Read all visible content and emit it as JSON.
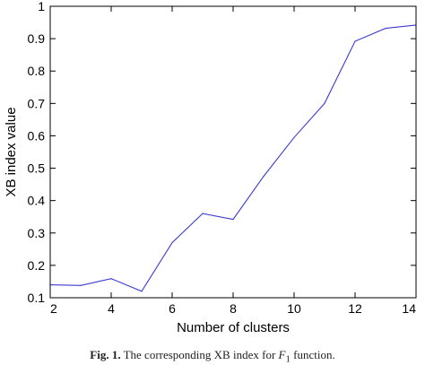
{
  "chart_data": {
    "type": "line",
    "title": "",
    "xlabel": "Number of clusters",
    "ylabel": "XB index value",
    "xlim": [
      2,
      14
    ],
    "ylim": [
      0.1,
      1
    ],
    "xticks": [
      2,
      4,
      6,
      8,
      10,
      12,
      14
    ],
    "yticks": [
      0.1,
      0.2,
      0.3,
      0.4,
      0.5,
      0.6,
      0.7,
      0.8,
      0.9,
      1
    ],
    "ytick_labels": [
      "0.1",
      "0.2",
      "0.3",
      "0.4",
      "0.5",
      "0.6",
      "0.7",
      "0.8",
      "0.9",
      "1"
    ],
    "grid": false,
    "legend": "none",
    "series": [
      {
        "color": "#3b3bd6",
        "x": [
          2,
          3,
          4,
          5,
          6,
          7,
          8,
          9,
          10,
          11,
          12,
          13,
          14
        ],
        "y": [
          0.14,
          0.138,
          0.159,
          0.12,
          0.27,
          0.36,
          0.342,
          0.475,
          0.595,
          0.7,
          0.892,
          0.932,
          0.942
        ]
      }
    ]
  },
  "caption": {
    "label": "Fig. 1.",
    "text_before": "The corresponding XB index for",
    "symbol": "F",
    "subscript": "1",
    "text_after": "function."
  }
}
